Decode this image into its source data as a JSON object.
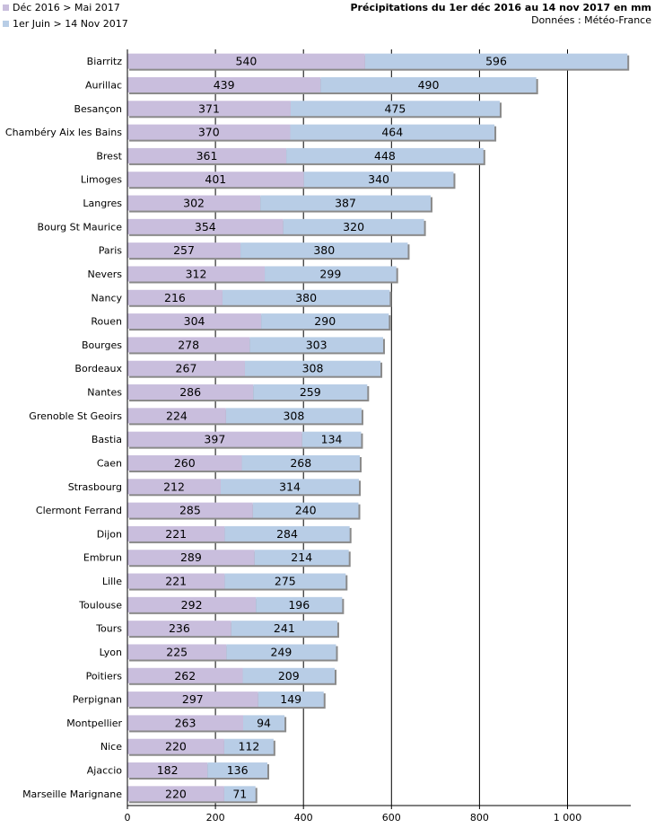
{
  "chart_data": {
    "type": "bar",
    "orientation": "horizontal",
    "stacked": true,
    "title": "Précipitations du 1er déc 2016 au 14 nov 2017 en mm",
    "subtitle": "Données : Météo-France",
    "xlabel": "",
    "ylabel": "",
    "xlim": [
      0,
      1150
    ],
    "xticks": [
      0,
      200,
      400,
      600,
      800,
      1000
    ],
    "xtick_labels": [
      "0",
      "200",
      "400",
      "600",
      "800",
      "1 000"
    ],
    "legend_position": "top-left",
    "categories": [
      "Biarritz",
      "Aurillac",
      "Besançon",
      "Chambéry Aix les Bains",
      "Brest",
      "Limoges",
      "Langres",
      "Bourg St Maurice",
      "Paris",
      "Nevers",
      "Nancy",
      "Rouen",
      "Bourges",
      "Bordeaux",
      "Nantes",
      "Grenoble St Geoirs",
      "Bastia",
      "Caen",
      "Strasbourg",
      "Clermont Ferrand",
      "Dijon",
      "Embrun",
      "Lille",
      "Toulouse",
      "Tours",
      "Lyon",
      "Poitiers",
      "Perpignan",
      "Montpellier",
      "Nice",
      "Ajaccio",
      "Marseille Marignane"
    ],
    "series": [
      {
        "name": "Déc 2016 > Mai 2017",
        "color": "#c9bedd",
        "values": [
          540,
          439,
          371,
          370,
          361,
          401,
          302,
          354,
          257,
          312,
          216,
          304,
          278,
          267,
          286,
          224,
          397,
          260,
          212,
          285,
          221,
          289,
          221,
          292,
          236,
          225,
          262,
          297,
          263,
          220,
          182,
          220
        ]
      },
      {
        "name": "1er Juin > 14 Nov 2017",
        "color": "#b8cde6",
        "values": [
          596,
          490,
          475,
          464,
          448,
          340,
          387,
          320,
          380,
          299,
          380,
          290,
          303,
          308,
          259,
          308,
          134,
          268,
          314,
          240,
          284,
          214,
          275,
          196,
          241,
          249,
          209,
          149,
          94,
          112,
          136,
          71
        ]
      }
    ]
  }
}
